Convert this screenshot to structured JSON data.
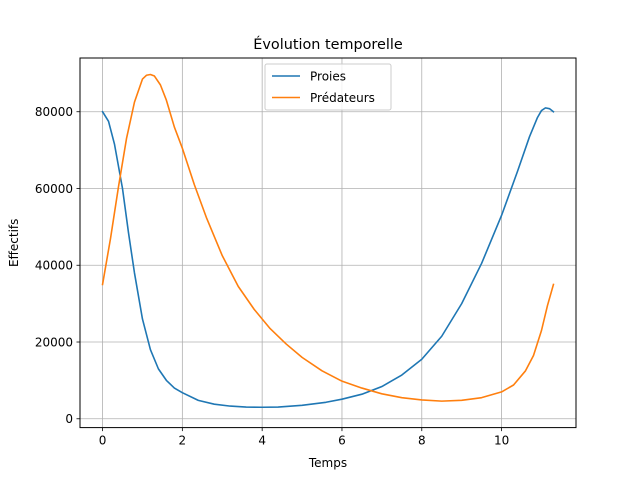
{
  "chart_data": {
    "type": "line",
    "title": "Évolution temporelle",
    "xlabel": "Temps",
    "ylabel": "Effectifs",
    "xlim": [
      -0.565,
      11.865
    ],
    "ylim": [
      -2300,
      94000
    ],
    "xticks": [
      0,
      2,
      4,
      6,
      8,
      10
    ],
    "xtick_labels": [
      "0",
      "2",
      "4",
      "6",
      "8",
      "10"
    ],
    "yticks": [
      0,
      20000,
      40000,
      60000,
      80000
    ],
    "ytick_labels": [
      "0",
      "20000",
      "40000",
      "60000",
      "80000"
    ],
    "grid": true,
    "legend_position": "top-center",
    "series": [
      {
        "name": "Proies",
        "color": "#1f77b4",
        "x": [
          0,
          0.15,
          0.3,
          0.5,
          0.65,
          0.8,
          1.0,
          1.2,
          1.4,
          1.6,
          1.8,
          2.0,
          2.4,
          2.8,
          3.2,
          3.6,
          4.0,
          4.4,
          5.0,
          5.6,
          6.0,
          6.5,
          7.0,
          7.5,
          8.0,
          8.5,
          9.0,
          9.5,
          10.0,
          10.4,
          10.7,
          10.9,
          11.0,
          11.1,
          11.2,
          11.3
        ],
        "y": [
          80000,
          77500,
          71500,
          60000,
          48500,
          38000,
          26000,
          18000,
          13000,
          10000,
          8000,
          6800,
          4800,
          3800,
          3300,
          3050,
          3000,
          3050,
          3500,
          4300,
          5100,
          6400,
          8400,
          11400,
          15500,
          21500,
          30000,
          40500,
          53000,
          64500,
          73500,
          78500,
          80300,
          81000,
          80800,
          80000
        ]
      },
      {
        "name": "Prédateurs",
        "color": "#ff7f0e",
        "x": [
          0,
          0.2,
          0.4,
          0.6,
          0.8,
          1.0,
          1.1,
          1.2,
          1.3,
          1.45,
          1.6,
          1.8,
          2.0,
          2.3,
          2.6,
          3.0,
          3.4,
          3.8,
          4.2,
          4.6,
          5.0,
          5.5,
          6.0,
          6.5,
          7.0,
          7.5,
          8.0,
          8.5,
          9.0,
          9.5,
          10.0,
          10.3,
          10.6,
          10.8,
          11.0,
          11.15,
          11.3
        ],
        "y": [
          35000,
          47000,
          60500,
          73000,
          82500,
          88500,
          89500,
          89700,
          89300,
          87000,
          83000,
          76000,
          70500,
          61000,
          52500,
          42500,
          34500,
          28500,
          23500,
          19500,
          16000,
          12500,
          9800,
          8000,
          6500,
          5500,
          4900,
          4600,
          4800,
          5500,
          7000,
          8800,
          12500,
          16500,
          23000,
          29500,
          35000
        ]
      }
    ]
  }
}
